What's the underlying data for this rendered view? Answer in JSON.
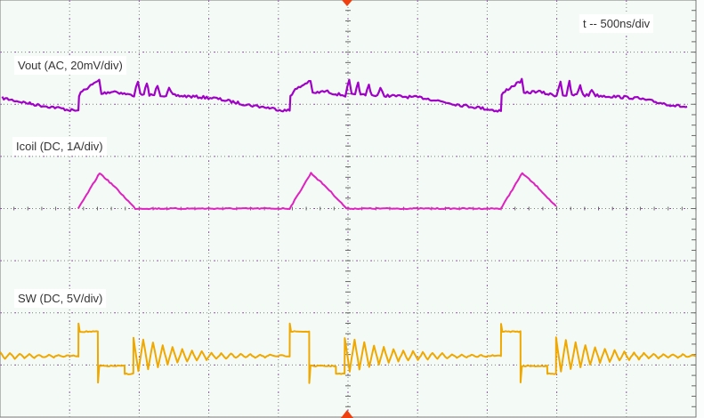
{
  "chart_data": {
    "type": "line",
    "title": "",
    "timebase_label": "t -- 500ns/div",
    "x_unit": "ns",
    "xlim": [
      0,
      5000
    ],
    "x_divisions": 10,
    "y_divisions": 8,
    "grid": true,
    "trigger_marker_color": "#f04010",
    "pulse_starts_ns": [
      -955,
      563,
      2081,
      3599
    ],
    "channels": [
      {
        "label": "Vout (AC, 20mV/div)",
        "unit": "mV",
        "scale_per_div": 20,
        "reference_div_from_center": 2,
        "color": "#a000c8",
        "period_points": [
          [
            0,
            -2.4
          ],
          [
            5,
            3.5
          ],
          [
            40,
            5.5
          ],
          [
            100,
            7.5
          ],
          [
            150,
            9.2
          ],
          [
            165,
            4
          ],
          [
            200,
            4.5
          ],
          [
            260,
            5
          ],
          [
            330,
            4
          ],
          [
            400,
            3.4
          ],
          [
            428,
            9
          ],
          [
            445,
            3.6
          ],
          [
            470,
            3.4
          ],
          [
            492,
            8.5
          ],
          [
            510,
            3.4
          ],
          [
            545,
            3.6
          ],
          [
            569,
            7.5
          ],
          [
            590,
            3.5
          ],
          [
            630,
            3.4
          ],
          [
            652,
            5.8
          ],
          [
            680,
            3.4
          ],
          [
            800,
            3
          ],
          [
            971,
            2.4
          ],
          [
            1100,
            1
          ],
          [
            1227,
            -0.3
          ],
          [
            1350,
            -1.2
          ],
          [
            1482,
            -2.4
          ],
          [
            1518,
            -2.4
          ]
        ]
      },
      {
        "label": "Icoil (DC, 1A/div)",
        "unit": "A",
        "scale_per_div": 1,
        "reference_div_from_center": 0,
        "color": "#e020c0",
        "period_points": [
          [
            0,
            0
          ],
          [
            153,
            0.68
          ],
          [
            260,
            0.42
          ],
          [
            409,
            0
          ],
          [
            1518,
            0
          ]
        ]
      },
      {
        "label": "SW (DC, 5V/div)",
        "unit": "V",
        "scale_per_div": 5,
        "reference_div_from_center": -3,
        "color": "#f0a800",
        "period_points": [
          [
            0,
            0.85
          ],
          [
            1,
            4.0
          ],
          [
            10,
            3.2
          ],
          [
            140,
            3.2
          ],
          [
            141,
            -1.7
          ],
          [
            150,
            -0.1
          ],
          [
            332,
            -0.1
          ],
          [
            333,
            -0.85
          ],
          [
            395,
            -0.85
          ],
          [
            396,
            2.6
          ],
          [
            431,
            -0.6
          ],
          [
            466,
            2.4
          ],
          [
            501,
            -0.4
          ],
          [
            536,
            2.2
          ],
          [
            571,
            -0.2
          ],
          [
            606,
            1.9
          ],
          [
            641,
            0.0
          ],
          [
            676,
            1.7
          ],
          [
            711,
            0.2
          ],
          [
            746,
            1.5
          ],
          [
            781,
            0.3
          ],
          [
            816,
            1.4
          ],
          [
            851,
            0.4
          ],
          [
            886,
            1.3
          ],
          [
            921,
            0.5
          ],
          [
            956,
            1.2
          ],
          [
            991,
            0.55
          ],
          [
            1026,
            1.15
          ],
          [
            1061,
            0.6
          ],
          [
            1096,
            1.1
          ],
          [
            1131,
            0.65
          ],
          [
            1166,
            1.05
          ],
          [
            1201,
            0.7
          ],
          [
            1236,
            1.0
          ],
          [
            1271,
            0.72
          ],
          [
            1306,
            1.0
          ],
          [
            1341,
            0.75
          ],
          [
            1376,
            0.95
          ],
          [
            1411,
            0.8
          ],
          [
            1446,
            0.9
          ],
          [
            1518,
            0.85
          ]
        ]
      }
    ]
  }
}
